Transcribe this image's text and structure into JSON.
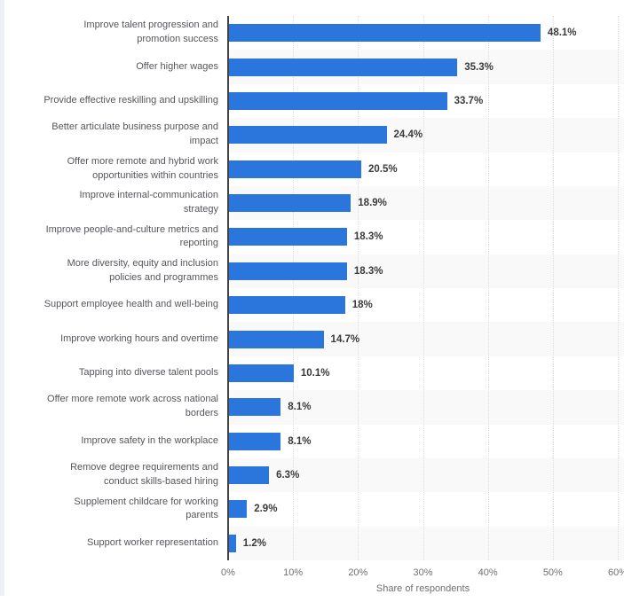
{
  "chart_data": {
    "type": "bar",
    "orientation": "horizontal",
    "title": "",
    "xlabel": "Share of respondents",
    "ylabel": "",
    "xlim": [
      0,
      60
    ],
    "x_tick_values": [
      0,
      10,
      20,
      30,
      40,
      50,
      60
    ],
    "x_ticks": [
      "0%",
      "10%",
      "20%",
      "30%",
      "40%",
      "50%",
      "60%"
    ],
    "grid": "dotted vertical gridlines at each 10%",
    "legend": "none",
    "row_banding": "alternate category rows shaded light gray",
    "categories": [
      "Improve talent progression and\npromotion success",
      "Offer higher wages",
      "Provide effective reskilling and upskilling",
      "Better articulate business purpose and\nimpact",
      "Offer more remote and hybrid work\nopportunities within countries",
      "Improve internal-communication\nstrategy",
      "Improve people-and-culture metrics and\nreporting",
      "More diversity, equity and inclusion\npolicies and programmes",
      "Support employee health and well-being",
      "Improve working hours and overtime",
      "Tapping into diverse talent pools",
      "Offer more remote work across national\nborders",
      "Improve safety in the workplace",
      "Remove degree requirements and\nconduct skills-based hiring",
      "Supplement childcare for working\nparents",
      "Support worker representation"
    ],
    "values": [
      48.1,
      35.3,
      33.7,
      24.4,
      20.5,
      18.9,
      18.3,
      18.3,
      18,
      14.7,
      10.1,
      8.1,
      8.1,
      6.3,
      2.9,
      1.2
    ],
    "value_labels": [
      "48.1%",
      "35.3%",
      "33.7%",
      "24.4%",
      "20.5%",
      "18.9%",
      "18.3%",
      "18.3%",
      "18%",
      "14.7%",
      "10.1%",
      "8.1%",
      "8.1%",
      "6.3%",
      "2.9%",
      "1.2%"
    ]
  },
  "colors": {
    "bar": "#2b76dd",
    "row_band": "#f9f9f9",
    "axis_line": "#434343",
    "gridline": "#dedede",
    "category_text": "#54565b",
    "value_text": "#3a3a3a",
    "tick_text": "#6e7072",
    "axis_title_text": "#6e7072",
    "page_edge_strip": "#eef0f5"
  }
}
